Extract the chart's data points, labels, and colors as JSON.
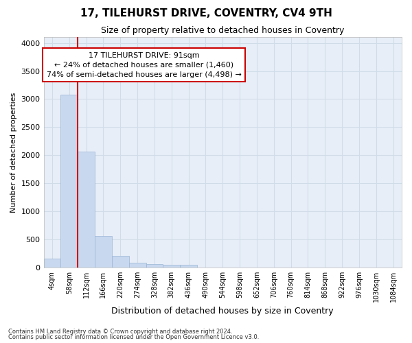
{
  "title": "17, TILEHURST DRIVE, COVENTRY, CV4 9TH",
  "subtitle": "Size of property relative to detached houses in Coventry",
  "xlabel": "Distribution of detached houses by size in Coventry",
  "ylabel": "Number of detached properties",
  "footnote1": "Contains HM Land Registry data © Crown copyright and database right 2024.",
  "footnote2": "Contains public sector information licensed under the Open Government Licence v3.0.",
  "bar_labels": [
    "4sqm",
    "58sqm",
    "112sqm",
    "166sqm",
    "220sqm",
    "274sqm",
    "328sqm",
    "382sqm",
    "436sqm",
    "490sqm",
    "544sqm",
    "598sqm",
    "652sqm",
    "706sqm",
    "760sqm",
    "814sqm",
    "868sqm",
    "922sqm",
    "976sqm",
    "1030sqm",
    "1084sqm"
  ],
  "bar_values": [
    155,
    3080,
    2060,
    565,
    205,
    80,
    55,
    50,
    50,
    0,
    0,
    0,
    0,
    0,
    0,
    0,
    0,
    0,
    0,
    0,
    0
  ],
  "bar_color": "#c8d8ee",
  "bar_edge_color": "#9ab5d5",
  "vline_color": "#cc0000",
  "vline_x": 1.5,
  "ylim": [
    0,
    4100
  ],
  "yticks": [
    0,
    500,
    1000,
    1500,
    2000,
    2500,
    3000,
    3500,
    4000
  ],
  "annotation_line1": "17 TILEHURST DRIVE: 91sqm",
  "annotation_line2": "← 24% of detached houses are smaller (1,460)",
  "annotation_line3": "74% of semi-detached houses are larger (4,498) →",
  "annotation_box_color": "#ffffff",
  "annotation_box_edge": "#cc0000",
  "grid_color": "#d0dce8",
  "background_color": "#ffffff",
  "plot_bg_color": "#e8eef8"
}
